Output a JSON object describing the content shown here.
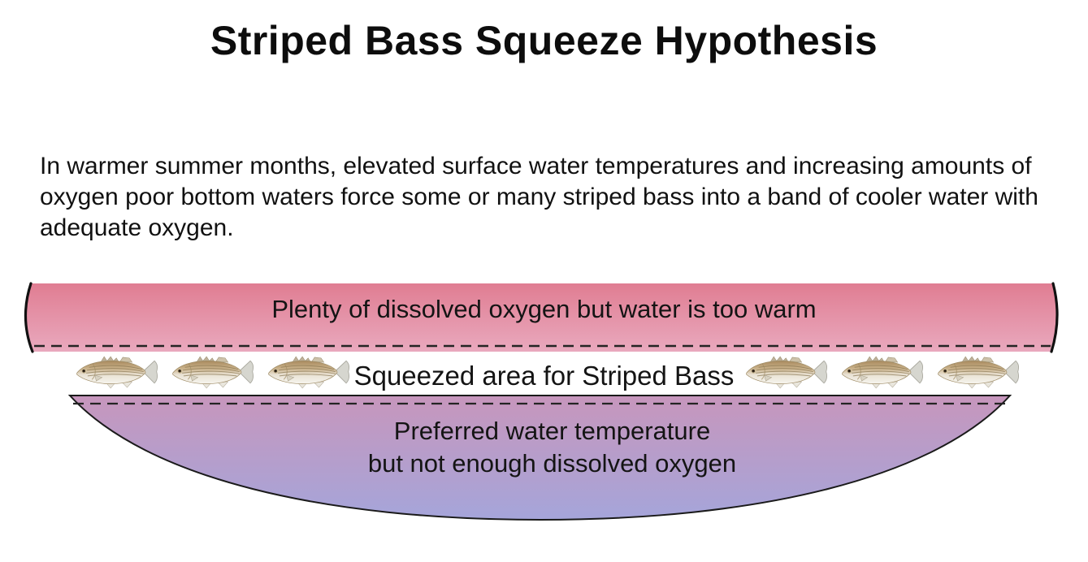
{
  "title": "Striped Bass Squeeze Hypothesis",
  "intro": "In warmer summer months, elevated surface water temperatures and increasing amounts of oxygen poor bottom waters force some or many striped bass into a band of cooler water with adequate oxygen.",
  "diagram": {
    "surface_band": {
      "label": "Plenty of dissolved oxygen but water is too warm",
      "gradient_top": "#e07d92",
      "gradient_bottom": "#e9a9be"
    },
    "squeeze_band": {
      "label": "Squeezed area for Striped Bass",
      "fish_icon": "striped-bass",
      "fish_left_count": 3,
      "fish_right_count": 3
    },
    "bottom_band": {
      "label_line1": "Preferred water temperature",
      "label_line2": "but not enough dissolved oxygen",
      "gradient_top": "#c796bc",
      "gradient_bottom": "#a5a5da"
    },
    "boundary_line_color": "#242424"
  }
}
